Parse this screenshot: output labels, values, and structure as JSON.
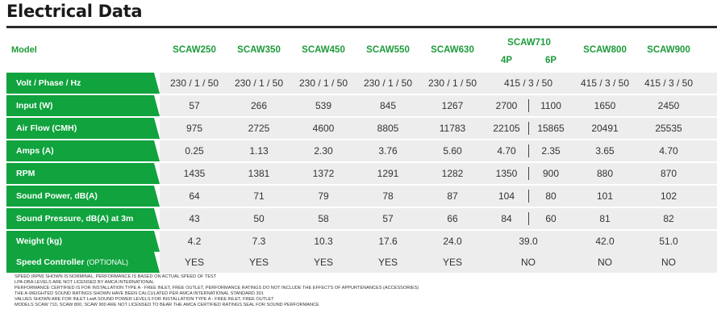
{
  "title": "Electrical Data",
  "header": {
    "label": "Model",
    "models": [
      "SCAW250",
      "SCAW350",
      "SCAW450",
      "SCAW550",
      "SCAW630",
      "SCAW710",
      "SCAW800",
      "SCAW900"
    ],
    "scaw710_sub": [
      "4P",
      "6P"
    ]
  },
  "rows": [
    {
      "label": "Volt / Phase / Hz",
      "values": [
        "230 / 1 / 50",
        "230 / 1 / 50",
        "230 / 1 / 50",
        "230 / 1 / 50",
        "230 / 1 / 50",
        "415 / 3 / 50",
        "415 / 3 / 50",
        "415 / 3 / 50"
      ]
    },
    {
      "label": "Input (W)",
      "values": [
        "57",
        "266",
        "539",
        "845",
        "1267",
        "2700",
        "1100",
        "1650",
        "2450"
      ]
    },
    {
      "label": "Air Flow (CMH)",
      "values": [
        "975",
        "2725",
        "4600",
        "8805",
        "11783",
        "22105",
        "15865",
        "20491",
        "25535"
      ]
    },
    {
      "label": "Amps (A)",
      "values": [
        "0.25",
        "1.13",
        "2.30",
        "3.76",
        "5.60",
        "4.70",
        "2.35",
        "3.65",
        "4.70"
      ]
    },
    {
      "label": "RPM",
      "values": [
        "1435",
        "1381",
        "1372",
        "1291",
        "1282",
        "1350",
        "900",
        "880",
        "870"
      ]
    },
    {
      "label": "Sound Power, dB(A)",
      "values": [
        "64",
        "71",
        "79",
        "78",
        "87",
        "104",
        "80",
        "101",
        "102"
      ]
    },
    {
      "label": "Sound Pressure, dB(A) at 3m",
      "values": [
        "43",
        "50",
        "58",
        "57",
        "66",
        "84",
        "60",
        "81",
        "82"
      ]
    },
    {
      "label": "Weight (kg)",
      "values": [
        "4.2",
        "7.3",
        "10.3",
        "17.6",
        "24.0",
        "39.0",
        "42.0",
        "51.0"
      ]
    },
    {
      "label": "Speed Controller",
      "label_suffix": "(OPTIONAL)",
      "values": [
        "YES",
        "YES",
        "YES",
        "YES",
        "YES",
        "NO",
        "NO",
        "NO"
      ]
    }
  ],
  "notes": [
    "SPEED (RPM) SHOWN IS NORMINAL, PERFORMANCE IS BASED ON ACTUAL SPEED OF TEST",
    "LPA-DBA LEVELS ARE NOT LICENSED BY AMCA INTERNATIONAL",
    "PERFORMANCE CERTIFIED IS FOR INSTALLATION TYPE A - FREE INLET, FREE OUTLET, PERFORMANCE RATINGS DO NOT INCLUDE THE EFFECTS OF APPURTENANCES (ACCESSORIES)",
    "THE A-WEIGHTED SOUND RATINGS SHOWN HAVE BEEN CALCULATED PER AMCA INTERNATIONAL STANDARD 301",
    "VALUES SHOWN ARE FOR INLET LwiA SOUND POWER LEVELS FOR INSTALLATION TYPE A - FREE INLET, FREE OUTLET",
    "MODELS SCAW 710, SCAW 800, SCAW 900 ARE NOT LICENSED TO BEAR THE AMCA CERTIFIED RATINGS SEAL FOR SOUND PERFORMANCE"
  ]
}
